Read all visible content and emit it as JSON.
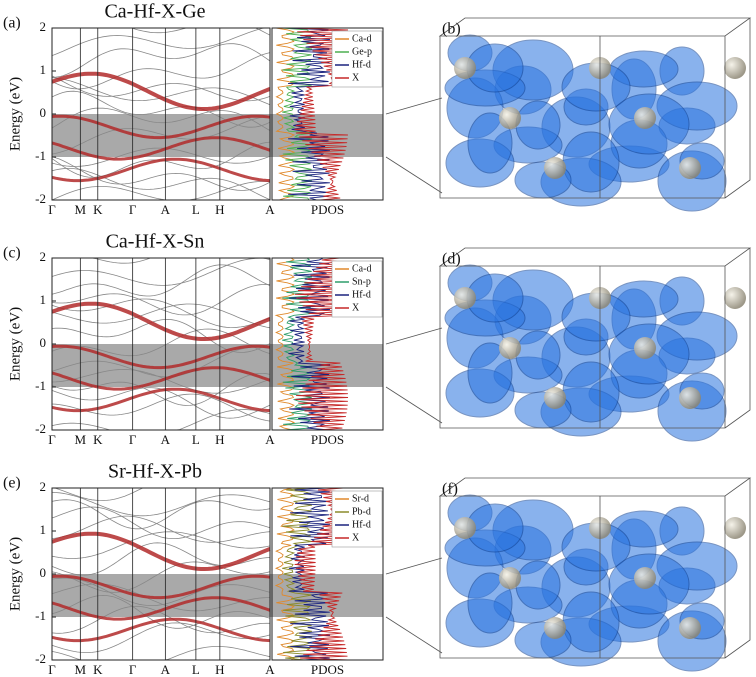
{
  "y_label": "Energy (eV)",
  "yticks": [
    -2,
    -1,
    0,
    1,
    2
  ],
  "kpoints": [
    "Γ",
    "M",
    "K",
    "Γ",
    "A",
    "L",
    "H",
    "A"
  ],
  "pdos_label": "PDOS",
  "panels": [
    {
      "label": "(a)",
      "title": "Ca-Hf-X-Ge",
      "iso_label": "(b)",
      "series": [
        {
          "name": "Ca-d",
          "color": "#e0892b"
        },
        {
          "name": "Ge-p",
          "color": "#4caf50"
        },
        {
          "name": "Hf-d",
          "color": "#1a237e"
        },
        {
          "name": "X",
          "color": "#c62828"
        }
      ]
    },
    {
      "label": "(c)",
      "title": "Ca-Hf-X-Sn",
      "iso_label": "(d)",
      "series": [
        {
          "name": "Ca-d",
          "color": "#e0892b"
        },
        {
          "name": "Sn-p",
          "color": "#2e9e6a"
        },
        {
          "name": "Hf-d",
          "color": "#1a237e"
        },
        {
          "name": "X",
          "color": "#c62828"
        }
      ]
    },
    {
      "label": "(e)",
      "title": "Sr-Hf-X-Pb",
      "iso_label": "(f)",
      "series": [
        {
          "name": "Sr-d",
          "color": "#e0892b"
        },
        {
          "name": "Pb-d",
          "color": "#8a8a2a"
        },
        {
          "name": "Hf-d",
          "color": "#1a237e"
        },
        {
          "name": "X",
          "color": "#c62828"
        }
      ]
    }
  ]
}
